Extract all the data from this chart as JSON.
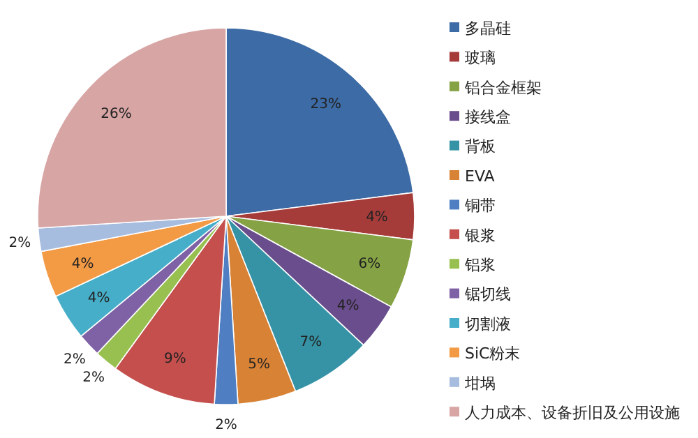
{
  "chart_data": {
    "type": "pie",
    "categories": [
      "多晶硅",
      "玻璃",
      "铝合金框架",
      "接线盒",
      "背板",
      "EVA",
      "铜带",
      "银浆",
      "铝浆",
      "锯切线",
      "切割液",
      "SiC粉末",
      "坩埚",
      "人力成本、设备折旧及公用设施"
    ],
    "values": [
      23,
      4,
      6,
      4,
      7,
      5,
      2,
      9,
      2,
      2,
      4,
      4,
      2,
      26
    ],
    "colors": [
      "#3d6ba5",
      "#a63c3a",
      "#85a244",
      "#6a4d8c",
      "#3693a6",
      "#d88236",
      "#4f7fc2",
      "#c44f4d",
      "#98c050",
      "#7f62a6",
      "#46aec8",
      "#f39a45",
      "#a7bde0",
      "#d8a5a5"
    ],
    "value_labels": [
      "23%",
      "4%",
      "6%",
      "4%",
      "7%",
      "5%",
      "2%",
      "9%",
      "2%",
      "2%",
      "4%",
      "4%",
      "2%",
      "26%"
    ],
    "legend": "right"
  }
}
